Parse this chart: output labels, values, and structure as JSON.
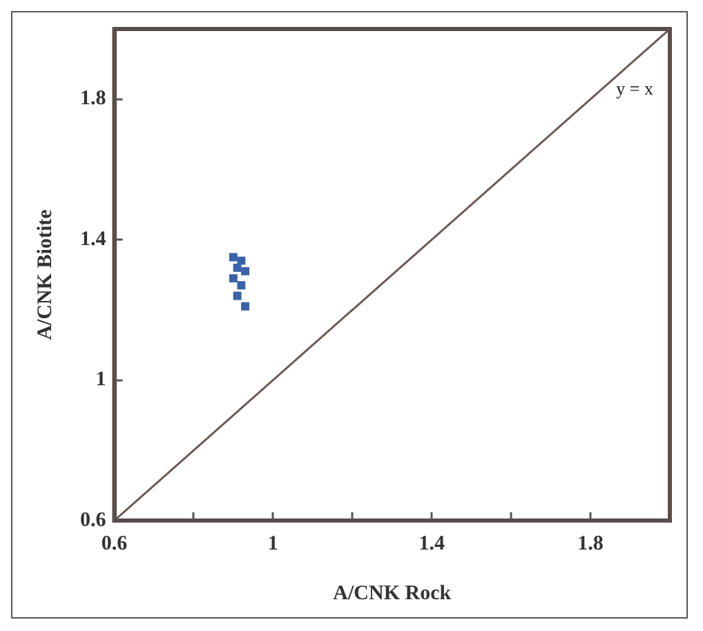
{
  "chart_data": {
    "type": "scatter",
    "xlabel": "A/CNK Rock",
    "ylabel": "A/CNK Biotite",
    "xlim": [
      0.6,
      2.0
    ],
    "ylim": [
      0.6,
      2.0
    ],
    "xticks": [
      0.6,
      {
        "value": 0.8,
        "label": null
      },
      1,
      {
        "value": 1.2,
        "label": null
      },
      1.4,
      {
        "value": 1.6,
        "label": null
      },
      1.8
    ],
    "yticks": [
      0.6,
      1,
      1.4,
      1.8
    ],
    "grid": false,
    "legend": false,
    "marker": "square",
    "series": [
      {
        "color": "#3a62a8",
        "x": [
          0.9,
          0.92,
          0.91,
          0.93,
          0.9,
          0.92,
          0.91,
          0.93
        ],
        "values": [
          1.35,
          1.34,
          1.32,
          1.31,
          1.29,
          1.27,
          1.24,
          1.21
        ]
      },
      {
        "type": "line",
        "color": "#6b5a55",
        "x": [
          0.6,
          2.0
        ],
        "values": [
          0.6,
          2.0
        ],
        "marker": "none"
      }
    ],
    "annotations": [
      "y = x"
    ]
  }
}
